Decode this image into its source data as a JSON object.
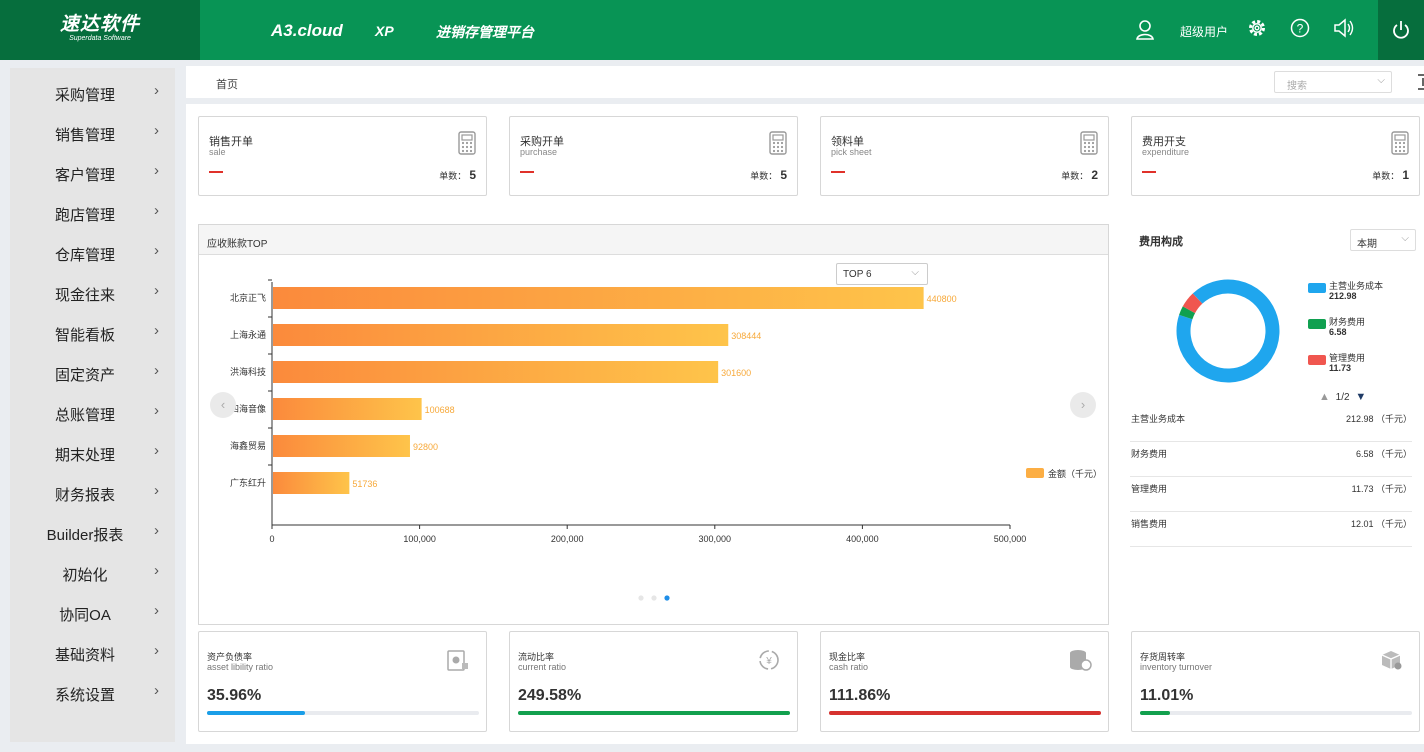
{
  "header": {
    "logo_cn": "速达软件",
    "logo_en": "Superdata Software",
    "product": "A3.cloud",
    "edition": "XP",
    "platform": "进销存管理平台",
    "user": "超级用户",
    "brand_color": "#089455",
    "brand_dark": "#066e3d"
  },
  "sidebar": {
    "items": [
      {
        "label": "采购管理",
        "chevron": "›"
      },
      {
        "label": "销售管理",
        "chevron": "›"
      },
      {
        "label": "客户管理",
        "chevron": "›"
      },
      {
        "label": "跑店管理",
        "chevron": "›"
      },
      {
        "label": "仓库管理",
        "chevron": "›"
      },
      {
        "label": "现金往来",
        "chevron": "›"
      },
      {
        "label": "智能看板",
        "chevron": "›"
      },
      {
        "label": "固定资产",
        "chevron": "›"
      },
      {
        "label": "总账管理",
        "chevron": "›"
      },
      {
        "label": "期末处理",
        "chevron": "›"
      },
      {
        "label": "财务报表",
        "chevron": "›"
      },
      {
        "label": "Builder报表",
        "chevron": "›"
      },
      {
        "label": "初始化",
        "chevron": "›"
      },
      {
        "label": "协同OA",
        "chevron": "›"
      },
      {
        "label": "基础资料",
        "chevron": "›"
      },
      {
        "label": "系统设置",
        "chevron": "›"
      }
    ]
  },
  "breadcrumb": {
    "home": "首页"
  },
  "search": {
    "placeholder": "搜索",
    "chevron": "⌵"
  },
  "kpis": [
    {
      "cn": "销售开单",
      "en": "sale",
      "count_label": "单数：",
      "count": "5"
    },
    {
      "cn": "采购开单",
      "en": "purchase",
      "count_label": "单数：",
      "count": "5"
    },
    {
      "cn": "领料单",
      "en": "pick sheet",
      "count_label": "单数：",
      "count": "2"
    },
    {
      "cn": "费用开支",
      "en": "expenditure",
      "count_label": "单数：",
      "count": "1"
    }
  ],
  "receivables": {
    "title": "应收账款TOP",
    "top_select": "TOP 6",
    "chevron": "⌵",
    "prev": "‹",
    "next": "›"
  },
  "chart_data": {
    "type": "bar",
    "orientation": "horizontal",
    "categories": [
      "北京正飞",
      "上海永通",
      "洪海科技",
      "四海音像",
      "海鑫贸易",
      "广东红升"
    ],
    "series": [
      {
        "name": "金额（千元）",
        "values": [
          440800,
          308444,
          301600,
          100688,
          92800,
          51736
        ]
      }
    ],
    "value_labels": [
      "440800",
      "308444",
      "301600",
      "100688",
      "92800",
      "51736"
    ],
    "xlim": [
      0,
      500000
    ],
    "xticks": [
      "0",
      "100,000",
      "200,000",
      "300,000",
      "400,000",
      "500,000"
    ],
    "legend_position": "right",
    "page_dots": 3,
    "active_dot": 3
  },
  "fees": {
    "title": "费用构成",
    "period": "本期",
    "chevron": "⌵",
    "pager": "1/2",
    "pager_up": "▲",
    "pager_down": "▼",
    "donut": [
      {
        "name": "主营业务成本",
        "value": "212.98",
        "amount": 212.98,
        "color": "#1fa6ee"
      },
      {
        "name": "财务费用",
        "value": "6.58",
        "amount": 6.58,
        "color": "#10a050"
      },
      {
        "name": "管理费用",
        "value": "11.73",
        "amount": 11.73,
        "color": "#f0564f"
      }
    ],
    "table": [
      {
        "name": "主营业务成本",
        "value": "212.98 （千元）"
      },
      {
        "name": "财务费用",
        "value": "6.58 （千元）"
      },
      {
        "name": "管理费用",
        "value": "11.73 （千元）"
      },
      {
        "name": "销售费用",
        "value": "12.01 （千元）"
      }
    ]
  },
  "ratios": [
    {
      "cn": "资产负债率",
      "en": "asset libility ratio",
      "value": "35.96%",
      "pct": 35.96,
      "color": "#1a9ee8"
    },
    {
      "cn": "流动比率",
      "en": "current ratio",
      "value": "249.58%",
      "pct": 100,
      "color": "#12a04e"
    },
    {
      "cn": "现金比率",
      "en": "cash ratio",
      "value": "111.86%",
      "pct": 100,
      "color": "#d6322f"
    },
    {
      "cn": "存货周转率",
      "en": "inventory turnover",
      "value": "11.01%",
      "pct": 11.01,
      "color": "#12a04e"
    }
  ]
}
